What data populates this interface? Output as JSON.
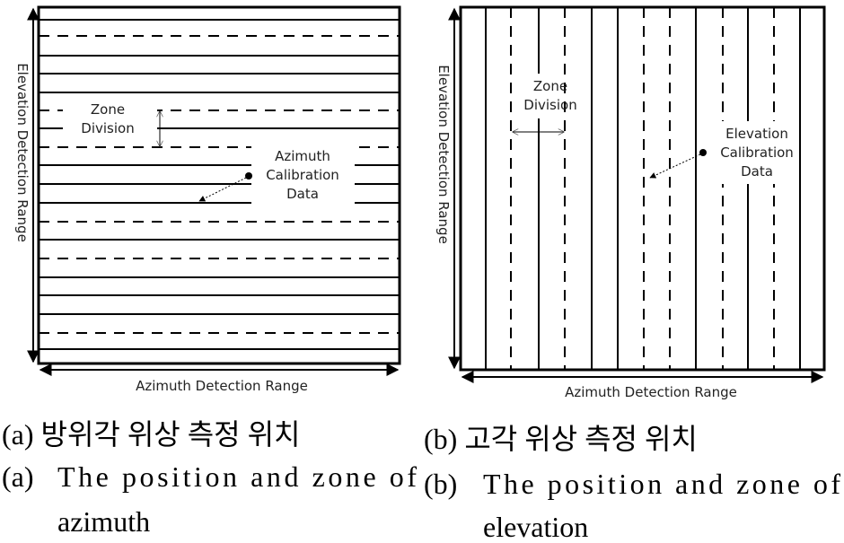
{
  "panels": [
    {
      "elevation_axis": "Elevation Detection Range",
      "azimuth_axis": "Azimuth Detection Range",
      "zone_label": [
        "Zone",
        "Division"
      ],
      "calibration_label": [
        "Azimuth",
        "Calibration",
        "Data"
      ],
      "caption_korean": "(a) 방위각 위상 측정 위치",
      "caption_english": [
        "(a)",
        "The position and zone of",
        "azimuth"
      ]
    },
    {
      "elevation_axis": "Elevation Detection Range",
      "azimuth_axis": "Azimuth Detection Range",
      "zone_label": [
        "Zone",
        "Division"
      ],
      "calibration_label": [
        "Elevation",
        "Calibration",
        "Data"
      ],
      "caption_korean": "(b) 고각 위상 측정 위치",
      "caption_english": [
        "(b)",
        "The position and zone of",
        "elevation"
      ]
    }
  ]
}
